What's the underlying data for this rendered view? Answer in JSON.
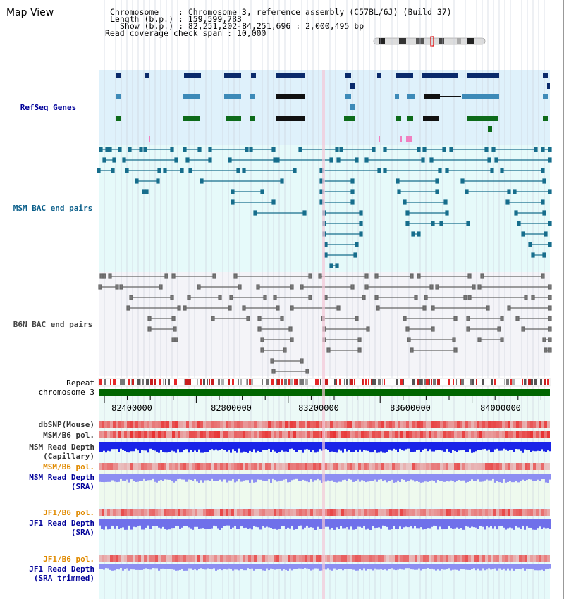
{
  "map_title": "Map View",
  "chrom_info": {
    "chromosome": "Chromosome    : Chromosome 3, reference assembly (C57BL/6J) (Build 37)",
    "length": "Length (b.p.) : 159,599,783",
    "show": "Show (b.p.) : 82,251,202-84,251,696 : 2,000,495 bp",
    "read_coverage": "Read coverage check span : 10,000"
  },
  "tracks": {
    "refseq": "RefSeq Genes",
    "msm_bac": "MSM BAC end pairs",
    "b6n_bac": "B6N BAC end pairs",
    "repeat": "Repeat",
    "chromosome": "chromosome 3",
    "dbsnp": "dbSNP(Mouse)",
    "msm_b6_pol_1": "MSM/B6 pol.",
    "msm_read_depth_cap_1": "MSM Read Depth",
    "msm_read_depth_cap_2": "(Capillary)",
    "msm_b6_pol_2": "MSM/B6 pol.",
    "msm_read_depth_sra_1": "MSM Read Depth",
    "msm_read_depth_sra_2": "(SRA)",
    "jf1_b6_pol_1": "JF1/B6 pol.",
    "jf1_read_depth_sra_1": "JF1 Read Depth",
    "jf1_read_depth_sra_2": "(SRA)",
    "jf1_b6_pol_2": "JF1/B6 pol.",
    "jf1_read_depth_trim_1": "JF1 Read Depth",
    "jf1_read_depth_trim_2": "(SRA trimmed)"
  },
  "axis": {
    "ticks": [
      "82400000",
      "82800000",
      "83200000",
      "83600000",
      "84000000"
    ]
  },
  "colors": {
    "refseq_bg": "#dff1fb",
    "msm_bg": "#e6fafa",
    "b6n_bg": "#f4f4f8",
    "msm_gene": "#0a2a6b",
    "msm_pair": "#166d8c",
    "b6n_pair": "#666666",
    "chromosome_bar": "#006600",
    "label_blue": "#000099",
    "label_orange": "#e08a00",
    "label_gray": "#333333",
    "pol_red": "#e8353a",
    "depth_blue": "#1a24e8",
    "depth_light": "#7d7ef0"
  }
}
